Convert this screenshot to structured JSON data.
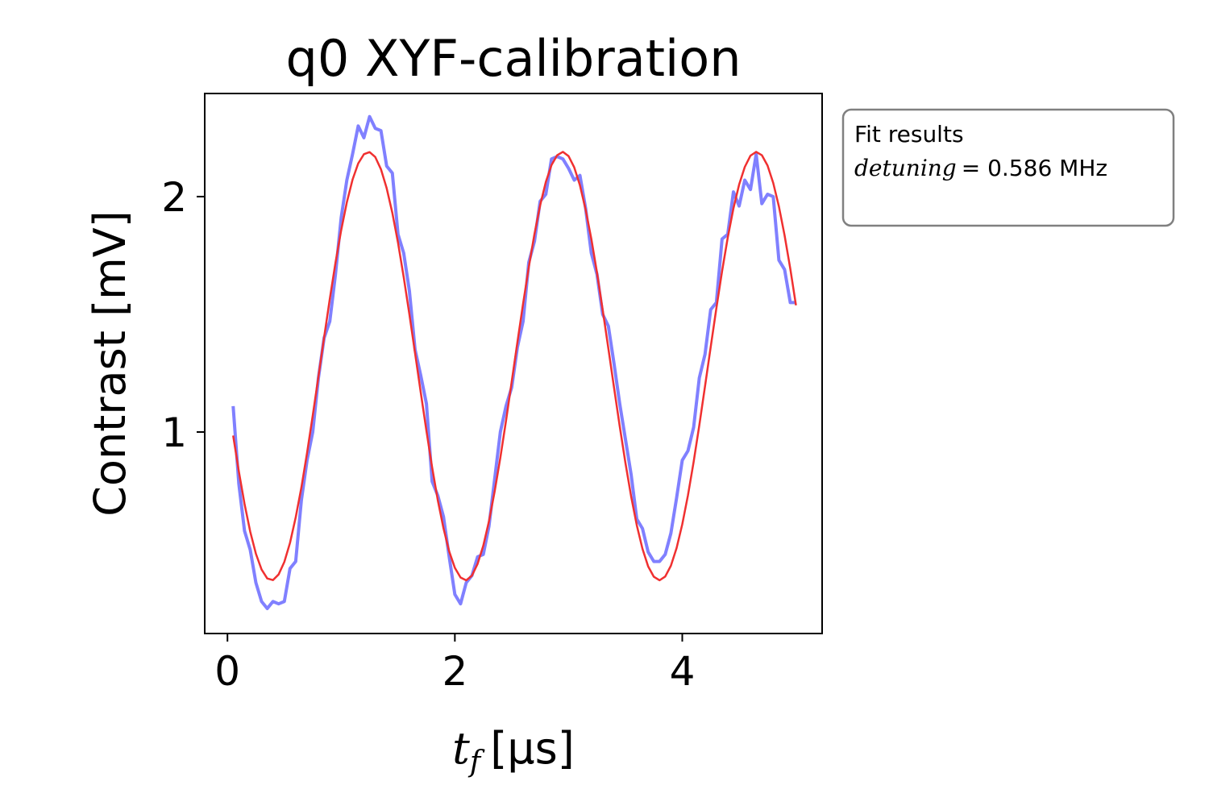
{
  "chart_data": {
    "type": "line",
    "title": "q0 XYF-calibration",
    "xlabel": [
      "t",
      "f",
      "[μs]"
    ],
    "ylabel": "Contrast [mV]",
    "x": [
      0.05,
      0.1,
      0.15,
      0.2,
      0.25,
      0.3,
      0.35,
      0.4,
      0.45,
      0.5,
      0.55,
      0.6,
      0.65,
      0.7,
      0.75,
      0.8,
      0.85,
      0.9,
      0.95,
      1.0,
      1.05,
      1.1,
      1.15,
      1.2,
      1.25,
      1.3,
      1.35,
      1.4,
      1.45,
      1.5,
      1.55,
      1.6,
      1.65,
      1.7,
      1.75,
      1.8,
      1.85,
      1.9,
      1.95,
      2.0,
      2.05,
      2.1,
      2.15,
      2.2,
      2.25,
      2.3,
      2.35,
      2.4,
      2.45,
      2.5,
      2.55,
      2.6,
      2.65,
      2.7,
      2.75,
      2.8,
      2.85,
      2.9,
      2.95,
      3.0,
      3.05,
      3.1,
      3.15,
      3.2,
      3.25,
      3.3,
      3.35,
      3.4,
      3.45,
      3.5,
      3.55,
      3.6,
      3.65,
      3.7,
      3.75,
      3.8,
      3.85,
      3.9,
      3.95,
      4.0,
      4.05,
      4.1,
      4.15,
      4.2,
      4.25,
      4.3,
      4.35,
      4.4,
      4.45,
      4.5,
      4.55,
      4.6,
      4.65,
      4.7,
      4.75,
      4.8,
      4.85,
      4.9,
      4.95,
      5.0
    ],
    "series": [
      {
        "color": "#8080ff",
        "width": 4,
        "values": [
          1.11,
          0.78,
          0.58,
          0.5,
          0.36,
          0.28,
          0.25,
          0.28,
          0.27,
          0.28,
          0.42,
          0.45,
          0.71,
          0.88,
          1.0,
          1.23,
          1.4,
          1.47,
          1.67,
          1.91,
          2.07,
          2.18,
          2.3,
          2.25,
          2.34,
          2.29,
          2.28,
          2.13,
          2.1,
          1.84,
          1.76,
          1.6,
          1.35,
          1.24,
          1.12,
          0.79,
          0.73,
          0.64,
          0.47,
          0.31,
          0.27,
          0.36,
          0.39,
          0.47,
          0.48,
          0.6,
          0.8,
          1.0,
          1.11,
          1.19,
          1.36,
          1.47,
          1.72,
          1.81,
          1.98,
          2.01,
          2.16,
          2.17,
          2.16,
          2.12,
          2.07,
          2.09,
          1.95,
          1.76,
          1.67,
          1.5,
          1.45,
          1.29,
          1.12,
          0.97,
          0.82,
          0.63,
          0.59,
          0.49,
          0.45,
          0.45,
          0.48,
          0.57,
          0.72,
          0.88,
          0.92,
          1.02,
          1.23,
          1.33,
          1.52,
          1.55,
          1.82,
          1.84,
          2.02,
          1.96,
          2.07,
          2.03,
          2.18,
          1.97,
          2.01,
          2.0,
          1.73,
          1.69,
          1.55,
          1.55
        ]
      },
      {
        "color": "#f03030",
        "width": 2.5,
        "values": [
          0.985,
          0.833,
          0.695,
          0.577,
          0.483,
          0.416,
          0.378,
          0.371,
          0.395,
          0.448,
          0.529,
          0.637,
          0.764,
          0.911,
          1.07,
          1.235,
          1.402,
          1.565,
          1.719,
          1.857,
          1.976,
          2.072,
          2.141,
          2.18,
          2.189,
          2.168,
          2.116,
          2.036,
          1.931,
          1.804,
          1.658,
          1.5,
          1.335,
          1.168,
          1.005,
          0.85,
          0.71,
          0.591,
          0.493,
          0.423,
          0.382,
          0.37,
          0.39,
          0.44,
          0.517,
          0.621,
          0.748,
          0.891,
          1.048,
          1.214,
          1.381,
          1.545,
          1.7,
          1.841,
          1.963,
          2.062,
          2.134,
          2.176,
          2.19,
          2.172,
          2.124,
          2.048,
          1.945,
          1.821,
          1.677,
          1.519,
          1.355,
          1.188,
          1.024,
          0.869,
          0.727,
          0.604,
          0.504,
          0.429,
          0.385,
          0.37,
          0.386,
          0.432,
          0.507,
          0.608,
          0.731,
          0.873,
          1.029,
          1.194,
          1.361,
          1.526,
          1.683,
          1.826,
          1.95,
          2.051,
          2.126,
          2.174,
          2.19,
          2.176,
          2.132,
          2.058,
          1.958,
          1.835,
          1.694,
          1.538
        ]
      }
    ],
    "xlim": [
      -0.2,
      5.23
    ],
    "ylim": [
      0.144,
      2.438
    ],
    "xticks": [
      0,
      2,
      4
    ],
    "yticks": [
      1,
      2
    ],
    "annotation": {
      "title": "Fit results",
      "line": [
        "detuning",
        "= 0.586 MHz"
      ]
    }
  }
}
